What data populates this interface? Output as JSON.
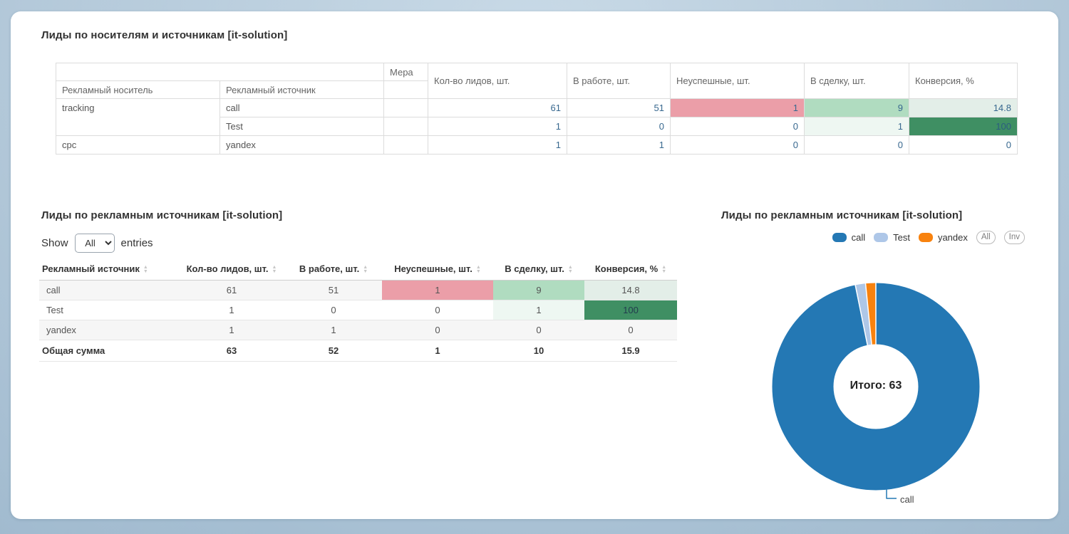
{
  "pivot": {
    "title": "Лиды по носителям и источникам [it-solution]",
    "headers": {
      "measure": "Мера",
      "carrier": "Рекламный носитель",
      "source": "Рекламный источник",
      "metrics": [
        "Кол-во лидов, шт.",
        "В работе, шт.",
        "Неуспешные, шт.",
        "В сделку, шт.",
        "Конверсия, %"
      ]
    },
    "rows": [
      {
        "carrier": "tracking",
        "source": "call",
        "leads": "61",
        "in_progress": "51",
        "failed": "1",
        "deal": "9",
        "conversion": "14.8"
      },
      {
        "carrier": "",
        "source": "Test",
        "leads": "1",
        "in_progress": "0",
        "failed": "0",
        "deal": "1",
        "conversion": "100"
      },
      {
        "carrier": "cpc",
        "source": "yandex",
        "leads": "1",
        "in_progress": "1",
        "failed": "0",
        "deal": "0",
        "conversion": "0"
      }
    ]
  },
  "datatable": {
    "title": "Лиды по рекламным источникам [it-solution]",
    "show_label": "Show",
    "entries_label": "entries",
    "page_size": "All",
    "headers": [
      "Рекламный источник",
      "Кол-во лидов, шт.",
      "В работе, шт.",
      "Неуспешные, шт.",
      "В сделку, шт.",
      "Конверсия, %"
    ],
    "rows": [
      {
        "source": "call",
        "leads": "61",
        "in_progress": "51",
        "failed": "1",
        "deal": "9",
        "conversion": "14.8"
      },
      {
        "source": "Test",
        "leads": "1",
        "in_progress": "0",
        "failed": "0",
        "deal": "1",
        "conversion": "100"
      },
      {
        "source": "yandex",
        "leads": "1",
        "in_progress": "1",
        "failed": "0",
        "deal": "0",
        "conversion": "0"
      }
    ],
    "footer": {
      "label": "Общая сумма",
      "leads": "63",
      "in_progress": "52",
      "failed": "1",
      "deal": "10",
      "conversion": "15.9"
    }
  },
  "chart": {
    "title": "Лиды по рекламным источникам [it-solution]",
    "legend": [
      {
        "label": "call",
        "color": "#2478b4"
      },
      {
        "label": "Test",
        "color": "#aec7e8"
      },
      {
        "label": "yandex",
        "color": "#f8820e"
      }
    ],
    "buttons": [
      "All",
      "Inv"
    ],
    "center_label": "Итого: 63",
    "callout_label": "call"
  },
  "chart_data": {
    "type": "pie",
    "donut": true,
    "labels": [
      "call",
      "Test",
      "yandex"
    ],
    "values": [
      61,
      1,
      1
    ],
    "colors": [
      "#2478b4",
      "#aec7e8",
      "#f8820e"
    ],
    "total": 63,
    "center_label": "Итого: 63",
    "title": "Лиды по рекламным источникам [it-solution]",
    "legend_position": "top-right"
  }
}
